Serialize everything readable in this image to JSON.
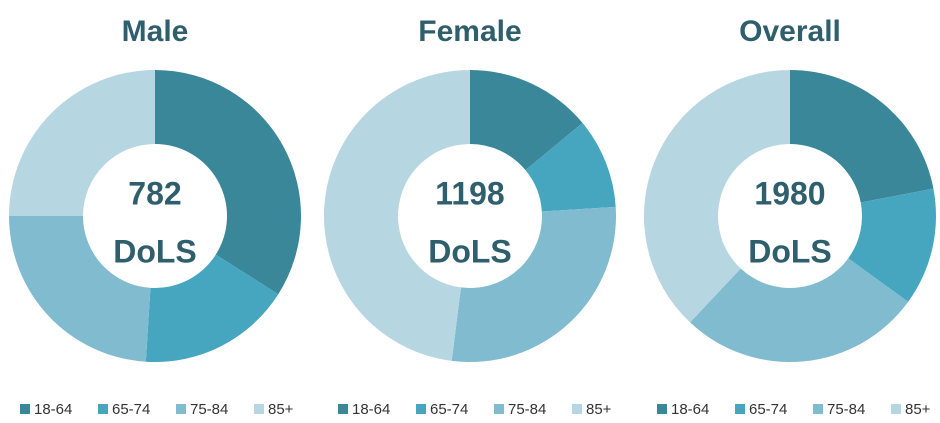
{
  "chart_data": [
    {
      "type": "donut",
      "title": "Male",
      "center_value": 782,
      "center_label": "DoLS",
      "categories": [
        "18-64",
        "65-74",
        "75-84",
        "85+"
      ],
      "values": [
        34,
        17,
        24,
        25
      ],
      "colors": [
        "#3a8799",
        "#46a6bf",
        "#80bbd0",
        "#b6d6e1"
      ]
    },
    {
      "type": "donut",
      "title": "Female",
      "center_value": 1198,
      "center_label": "DoLS",
      "categories": [
        "18-64",
        "65-74",
        "75-84",
        "85+"
      ],
      "values": [
        14,
        10,
        28,
        48
      ],
      "colors": [
        "#3a8799",
        "#46a6bf",
        "#80bbd0",
        "#b6d6e1"
      ]
    },
    {
      "type": "donut",
      "title": "Overall",
      "center_value": 1980,
      "center_label": "DoLS",
      "categories": [
        "18-64",
        "65-74",
        "75-84",
        "85+"
      ],
      "values": [
        22,
        13,
        27,
        38
      ],
      "colors": [
        "#3a8799",
        "#46a6bf",
        "#80bbd0",
        "#b6d6e1"
      ]
    }
  ]
}
